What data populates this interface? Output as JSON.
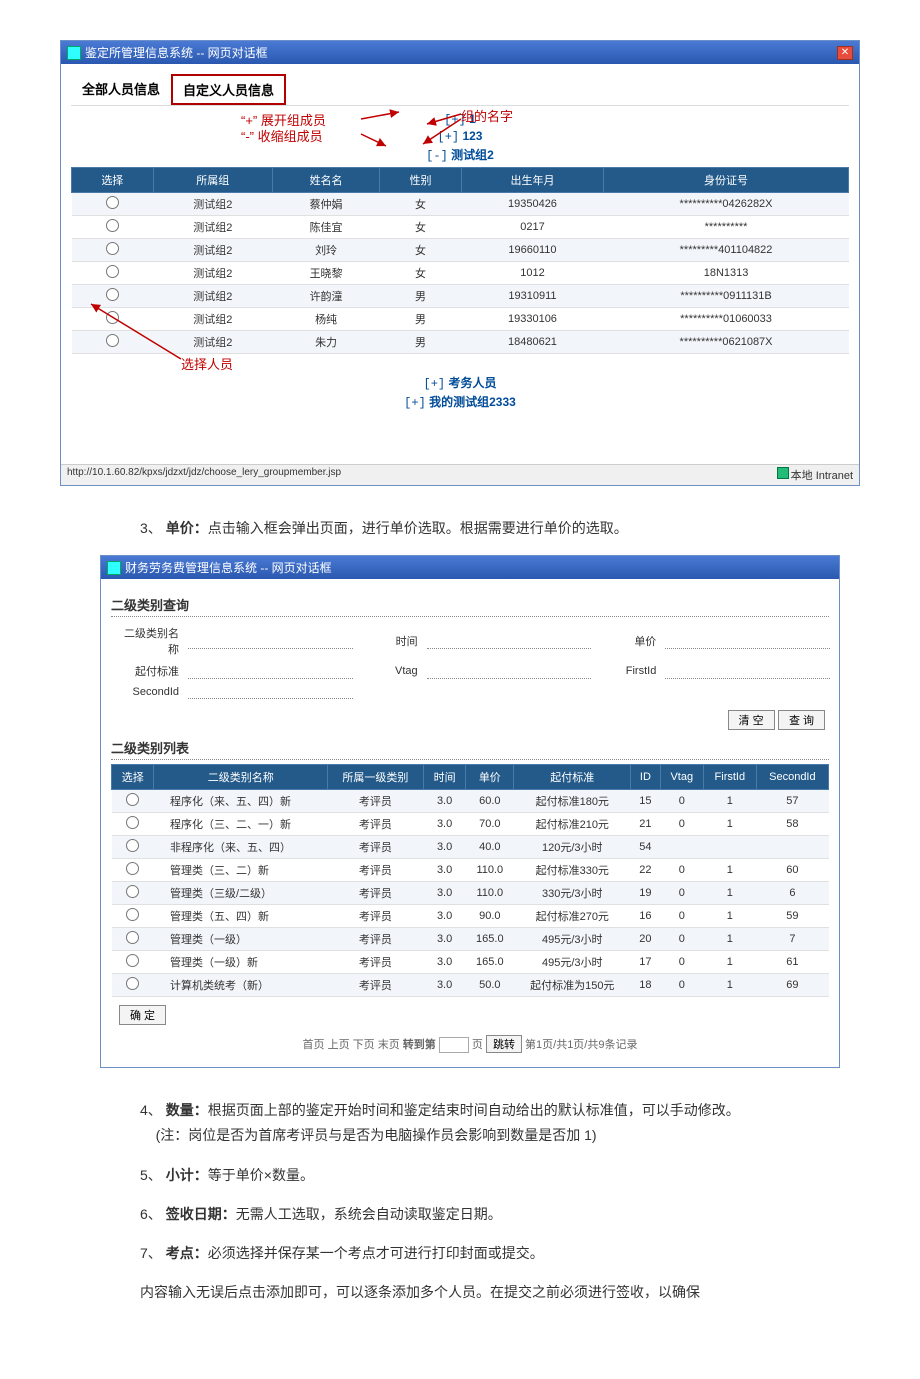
{
  "dialog1": {
    "title": "鉴定所管理信息系统 -- 网页对话框",
    "tabs": {
      "all": "全部人员信息",
      "custom": "自定义人员信息"
    },
    "annotations": {
      "expand": "“+” 展开组成员",
      "collapse": "“-” 收缩组成员",
      "group_name": "组的名字",
      "select_person": "选择人员"
    },
    "tree": {
      "n1": {
        "tog": "[+]",
        "label": "1"
      },
      "n2": {
        "tog": "[+]",
        "label": "123"
      },
      "n3": {
        "tog": "[-]",
        "label": "测试组2"
      },
      "n4": {
        "tog": "[+]",
        "label": "考务人员"
      },
      "n5": {
        "tog": "[+]",
        "label": "我的测试组2333"
      }
    },
    "columns": {
      "c0": "选择",
      "c1": "所属组",
      "c2": "姓名名",
      "c3": "性别",
      "c4": "出生年月",
      "c5": "身份证号"
    },
    "rows": [
      {
        "group": "测试组2",
        "name": "蔡仲娟",
        "sex": "女",
        "dob": "19350426",
        "id": "**********0426282X"
      },
      {
        "group": "测试组2",
        "name": "陈佳宜",
        "sex": "女",
        "dob": "0217",
        "id": "**********"
      },
      {
        "group": "测试组2",
        "name": "刘玲",
        "sex": "女",
        "dob": "19660110",
        "id": "*********401104822"
      },
      {
        "group": "测试组2",
        "name": "王晓黎",
        "sex": "女",
        "dob": "1012",
        "id": "18N1313"
      },
      {
        "group": "测试组2",
        "name": "许韵潼",
        "sex": "男",
        "dob": "19310911",
        "id": "**********0911131B"
      },
      {
        "group": "测试组2",
        "name": "杨纯",
        "sex": "男",
        "dob": "19330106",
        "id": "**********01060033"
      },
      {
        "group": "测试组2",
        "name": "朱力",
        "sex": "男",
        "dob": "18480621",
        "id": "**********0621087X"
      }
    ],
    "status_url": "http://10.1.60.82/kpxs/jdzxt/jdz/choose_lery_groupmember.jsp",
    "intranet": "本地 Intranet"
  },
  "item3": {
    "num": "3、",
    "label": "单价：",
    "text": "点击输入框会弹出页面，进行单价选取。根据需要进行单价的选取。"
  },
  "dialog2": {
    "title": "财务劳务费管理信息系统 -- 网页对话框",
    "section_query": "二级类别查询",
    "section_list": "二级类别列表",
    "form": {
      "name_l": "二级类别名称",
      "time_l": "时间",
      "price_l": "单价",
      "std_l": "起付标准",
      "vtag_l": "Vtag",
      "firstid_l": "FirstId",
      "secondid_l": "SecondId"
    },
    "buttons": {
      "clear": "清 空",
      "query": "查 询",
      "confirm": "确 定",
      "go": "跳转"
    },
    "columns": {
      "c0": "选择",
      "c1": "二级类别名称",
      "c2": "所属一级类别",
      "c3": "时间",
      "c4": "单价",
      "c5": "起付标准",
      "c6": "ID",
      "c7": "Vtag",
      "c8": "FirstId",
      "c9": "SecondId"
    },
    "rows": [
      {
        "name": "程序化（来、五、四）新",
        "cat": "考评员",
        "time": "3.0",
        "price": "60.0",
        "std": "起付标准180元",
        "id": "15",
        "vtag": "0",
        "fid": "1",
        "sid": "57"
      },
      {
        "name": "程序化（三、二、一）新",
        "cat": "考评员",
        "time": "3.0",
        "price": "70.0",
        "std": "起付标准210元",
        "id": "21",
        "vtag": "0",
        "fid": "1",
        "sid": "58"
      },
      {
        "name": "非程序化（来、五、四）",
        "cat": "考评员",
        "time": "3.0",
        "price": "40.0",
        "std": "120元/3小时",
        "id": "54",
        "vtag": "",
        "fid": "",
        "sid": ""
      },
      {
        "name": "管理类（三、二）新",
        "cat": "考评员",
        "time": "3.0",
        "price": "110.0",
        "std": "起付标准330元",
        "id": "22",
        "vtag": "0",
        "fid": "1",
        "sid": "60"
      },
      {
        "name": "管理类（三级/二级）",
        "cat": "考评员",
        "time": "3.0",
        "price": "110.0",
        "std": "330元/3小时",
        "id": "19",
        "vtag": "0",
        "fid": "1",
        "sid": "6"
      },
      {
        "name": "管理类（五、四）新",
        "cat": "考评员",
        "time": "3.0",
        "price": "90.0",
        "std": "起付标准270元",
        "id": "16",
        "vtag": "0",
        "fid": "1",
        "sid": "59"
      },
      {
        "name": "管理类（一级）",
        "cat": "考评员",
        "time": "3.0",
        "price": "165.0",
        "std": "495元/3小时",
        "id": "20",
        "vtag": "0",
        "fid": "1",
        "sid": "7"
      },
      {
        "name": "管理类（一级）新",
        "cat": "考评员",
        "time": "3.0",
        "price": "165.0",
        "std": "495元/3小时",
        "id": "17",
        "vtag": "0",
        "fid": "1",
        "sid": "61"
      },
      {
        "name": "计算机类统考（新）",
        "cat": "考评员",
        "time": "3.0",
        "price": "50.0",
        "std": "起付标准为150元",
        "id": "18",
        "vtag": "0",
        "fid": "1",
        "sid": "69"
      }
    ],
    "pager": {
      "first": "首页",
      "prev": "上页",
      "next": "下页",
      "last": "末页",
      "jump": "转到第",
      "unit": "页",
      "info": "第1页/共1页/共9条记录"
    }
  },
  "item4": {
    "num": "4、",
    "label": "数量：",
    "text": "根据页面上部的鉴定开始时间和鉴定结束时间自动给出的默认标准值，可以手动修改。",
    "note": "(注：岗位是否为首席考评员与是否为电脑操作员会影响到数量是否加 1)"
  },
  "item5": {
    "num": "5、",
    "label": "小计：",
    "text": "等于单价×数量。"
  },
  "item6": {
    "num": "6、",
    "label": "签收日期：",
    "text": "无需人工选取，系统会自动读取鉴定日期。"
  },
  "item7": {
    "num": "7、",
    "label": "考点：",
    "text": "必须选择并保存某一个考点才可进行打印封面或提交。"
  },
  "footer_text": "内容输入无误后点击添加即可，可以逐条添加多个人员。在提交之前必须进行签收，以确保"
}
